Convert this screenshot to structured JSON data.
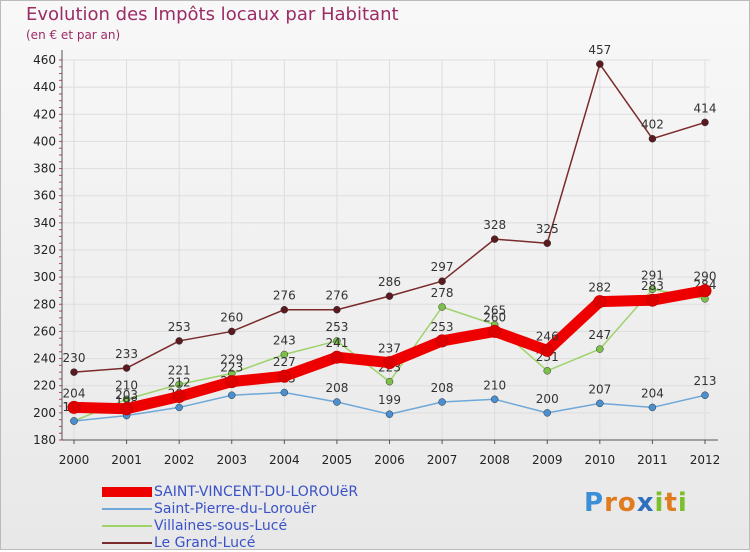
{
  "title": "Evolution des Impôts locaux par Habitant",
  "subtitle": "(en € et par an)",
  "logo": {
    "text": "Proxiti",
    "letters": [
      "P",
      "r",
      "o",
      "x",
      "i",
      "t",
      "i"
    ],
    "colors": [
      "#3b8fd6",
      "#e07b1e",
      "#e07b1e",
      "#2f6fc0",
      "#7bbf2a",
      "#e07b1e",
      "#7bbf2a"
    ]
  },
  "chart_data": {
    "type": "line",
    "title": "Evolution des Impôts locaux par Habitant",
    "ylabel": "(en € et par an)",
    "xlabel": "",
    "x": [
      2000,
      2001,
      2002,
      2003,
      2004,
      2005,
      2006,
      2007,
      2008,
      2009,
      2010,
      2011,
      2012
    ],
    "ylim": [
      180,
      460
    ],
    "yticks": [
      180,
      200,
      220,
      240,
      260,
      280,
      300,
      320,
      340,
      360,
      380,
      400,
      420,
      440,
      460
    ],
    "grid": true,
    "legend": "bottom-left",
    "series": [
      {
        "name": "Le Grand-Lucé",
        "color": "#7a2a2a",
        "marker": "#5a1a20",
        "values": [
          230,
          233,
          253,
          260,
          276,
          276,
          286,
          297,
          328,
          325,
          457,
          402,
          414
        ]
      },
      {
        "name": "Villaines-sous-Lucé",
        "color": "#9ed36a",
        "marker": "#7cc04a",
        "values": [
          194,
          210,
          221,
          229,
          243,
          253,
          223,
          278,
          265,
          231,
          247,
          291,
          284
        ]
      },
      {
        "name": "Saint-Pierre-du-Lorouër",
        "color": "#6fa8d8",
        "marker": "#4a8fd0",
        "values": [
          194,
          198,
          204,
          213,
          215,
          208,
          199,
          208,
          210,
          200,
          207,
          204,
          213
        ]
      },
      {
        "name": "SAINT-VINCENT-DU-LOROUëR",
        "color": "#ee0000",
        "marker": "#dd0000",
        "values": [
          204,
          203,
          212,
          223,
          227,
          241,
          237,
          253,
          260,
          246,
          282,
          283,
          290
        ]
      }
    ],
    "legend_order": [
      "SAINT-VINCENT-DU-LOROUëR",
      "Saint-Pierre-du-Lorouër",
      "Villaines-sous-Lucé",
      "Le Grand-Lucé"
    ]
  }
}
